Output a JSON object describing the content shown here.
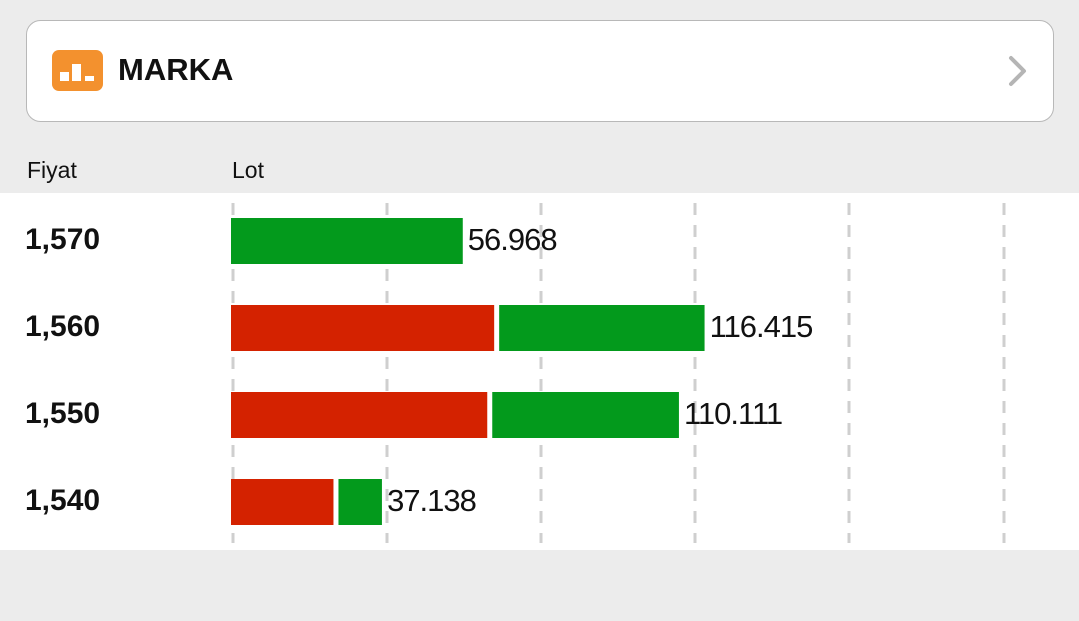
{
  "header": {
    "title": "MARKA"
  },
  "columns": [
    "Fiyat",
    "Lot"
  ],
  "chart_data": {
    "type": "stacked-hbar",
    "categories": [
      "1,570",
      "1,560",
      "1,550",
      "1,540"
    ],
    "series": [
      {
        "color": "#d42200",
        "values": [
          0,
          65300,
          63600,
          25800
        ]
      },
      {
        "color": "#039a1c",
        "values": [
          56968,
          51100,
          46500,
          11300
        ]
      }
    ],
    "totals": [
      56968,
      116415,
      110111,
      37138
    ],
    "value_labels": [
      "56.968",
      "116.415",
      "110.111",
      "37.138"
    ],
    "xlim": [
      0,
      190000
    ]
  }
}
